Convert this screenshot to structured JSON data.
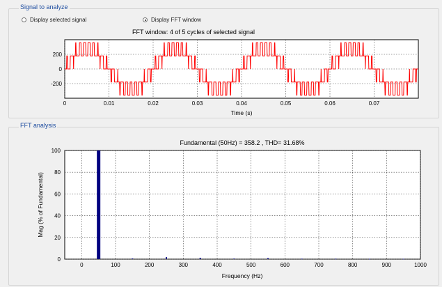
{
  "signal_panel": {
    "title": "Signal to analyze",
    "radio_selected_signal": "Display selected signal",
    "radio_fft_window": "Display FFT window",
    "selected_radio": "fft_window",
    "plot_title": "FFT window: 4 of 5 cycles of selected signal",
    "xlabel": "Time (s)",
    "x_ticks": [
      "0",
      "0.01",
      "0.02",
      "0.03",
      "0.04",
      "0.05",
      "0.06",
      "0.07"
    ],
    "y_ticks": [
      "200",
      "0",
      "-200"
    ]
  },
  "fft_panel": {
    "title": "FFT analysis",
    "plot_title": "Fundamental (50Hz) = 358.2 , THD= 31.68%",
    "xlabel": "Frequency (Hz)",
    "ylabel": "Mag (% of Fundamental)",
    "x_ticks": [
      "0",
      "100",
      "200",
      "300",
      "400",
      "500",
      "600",
      "700",
      "800",
      "900",
      "1000"
    ],
    "y_ticks": [
      "100",
      "80",
      "60",
      "40",
      "20",
      "0"
    ]
  },
  "chart_data": [
    {
      "type": "line",
      "title": "FFT window: 4 of 5 cycles of selected signal",
      "xlabel": "Time (s)",
      "ylabel": "",
      "xlim": [
        0,
        0.08
      ],
      "ylim": [
        -400,
        400
      ],
      "grid": true,
      "series": [
        {
          "color": "#ff0000",
          "description_levels": [
            0,
            179,
            358
          ],
          "fundamental_hz": 50,
          "cycles_shown": 4
        }
      ]
    },
    {
      "type": "bar",
      "title": "Fundamental (50Hz) = 358.2 , THD= 31.68%",
      "xlabel": "Frequency (Hz)",
      "ylabel": "Mag (% of Fundamental)",
      "xlim": [
        -50,
        1000
      ],
      "ylim": [
        0,
        100
      ],
      "grid": true,
      "x": [
        50,
        150,
        250,
        350,
        450,
        550,
        650,
        750,
        850,
        950
      ],
      "values": [
        100,
        0.6,
        1.8,
        1.2,
        0.5,
        0.9,
        0.4,
        0.4,
        0.3,
        0.3
      ],
      "color": "#000080"
    }
  ]
}
